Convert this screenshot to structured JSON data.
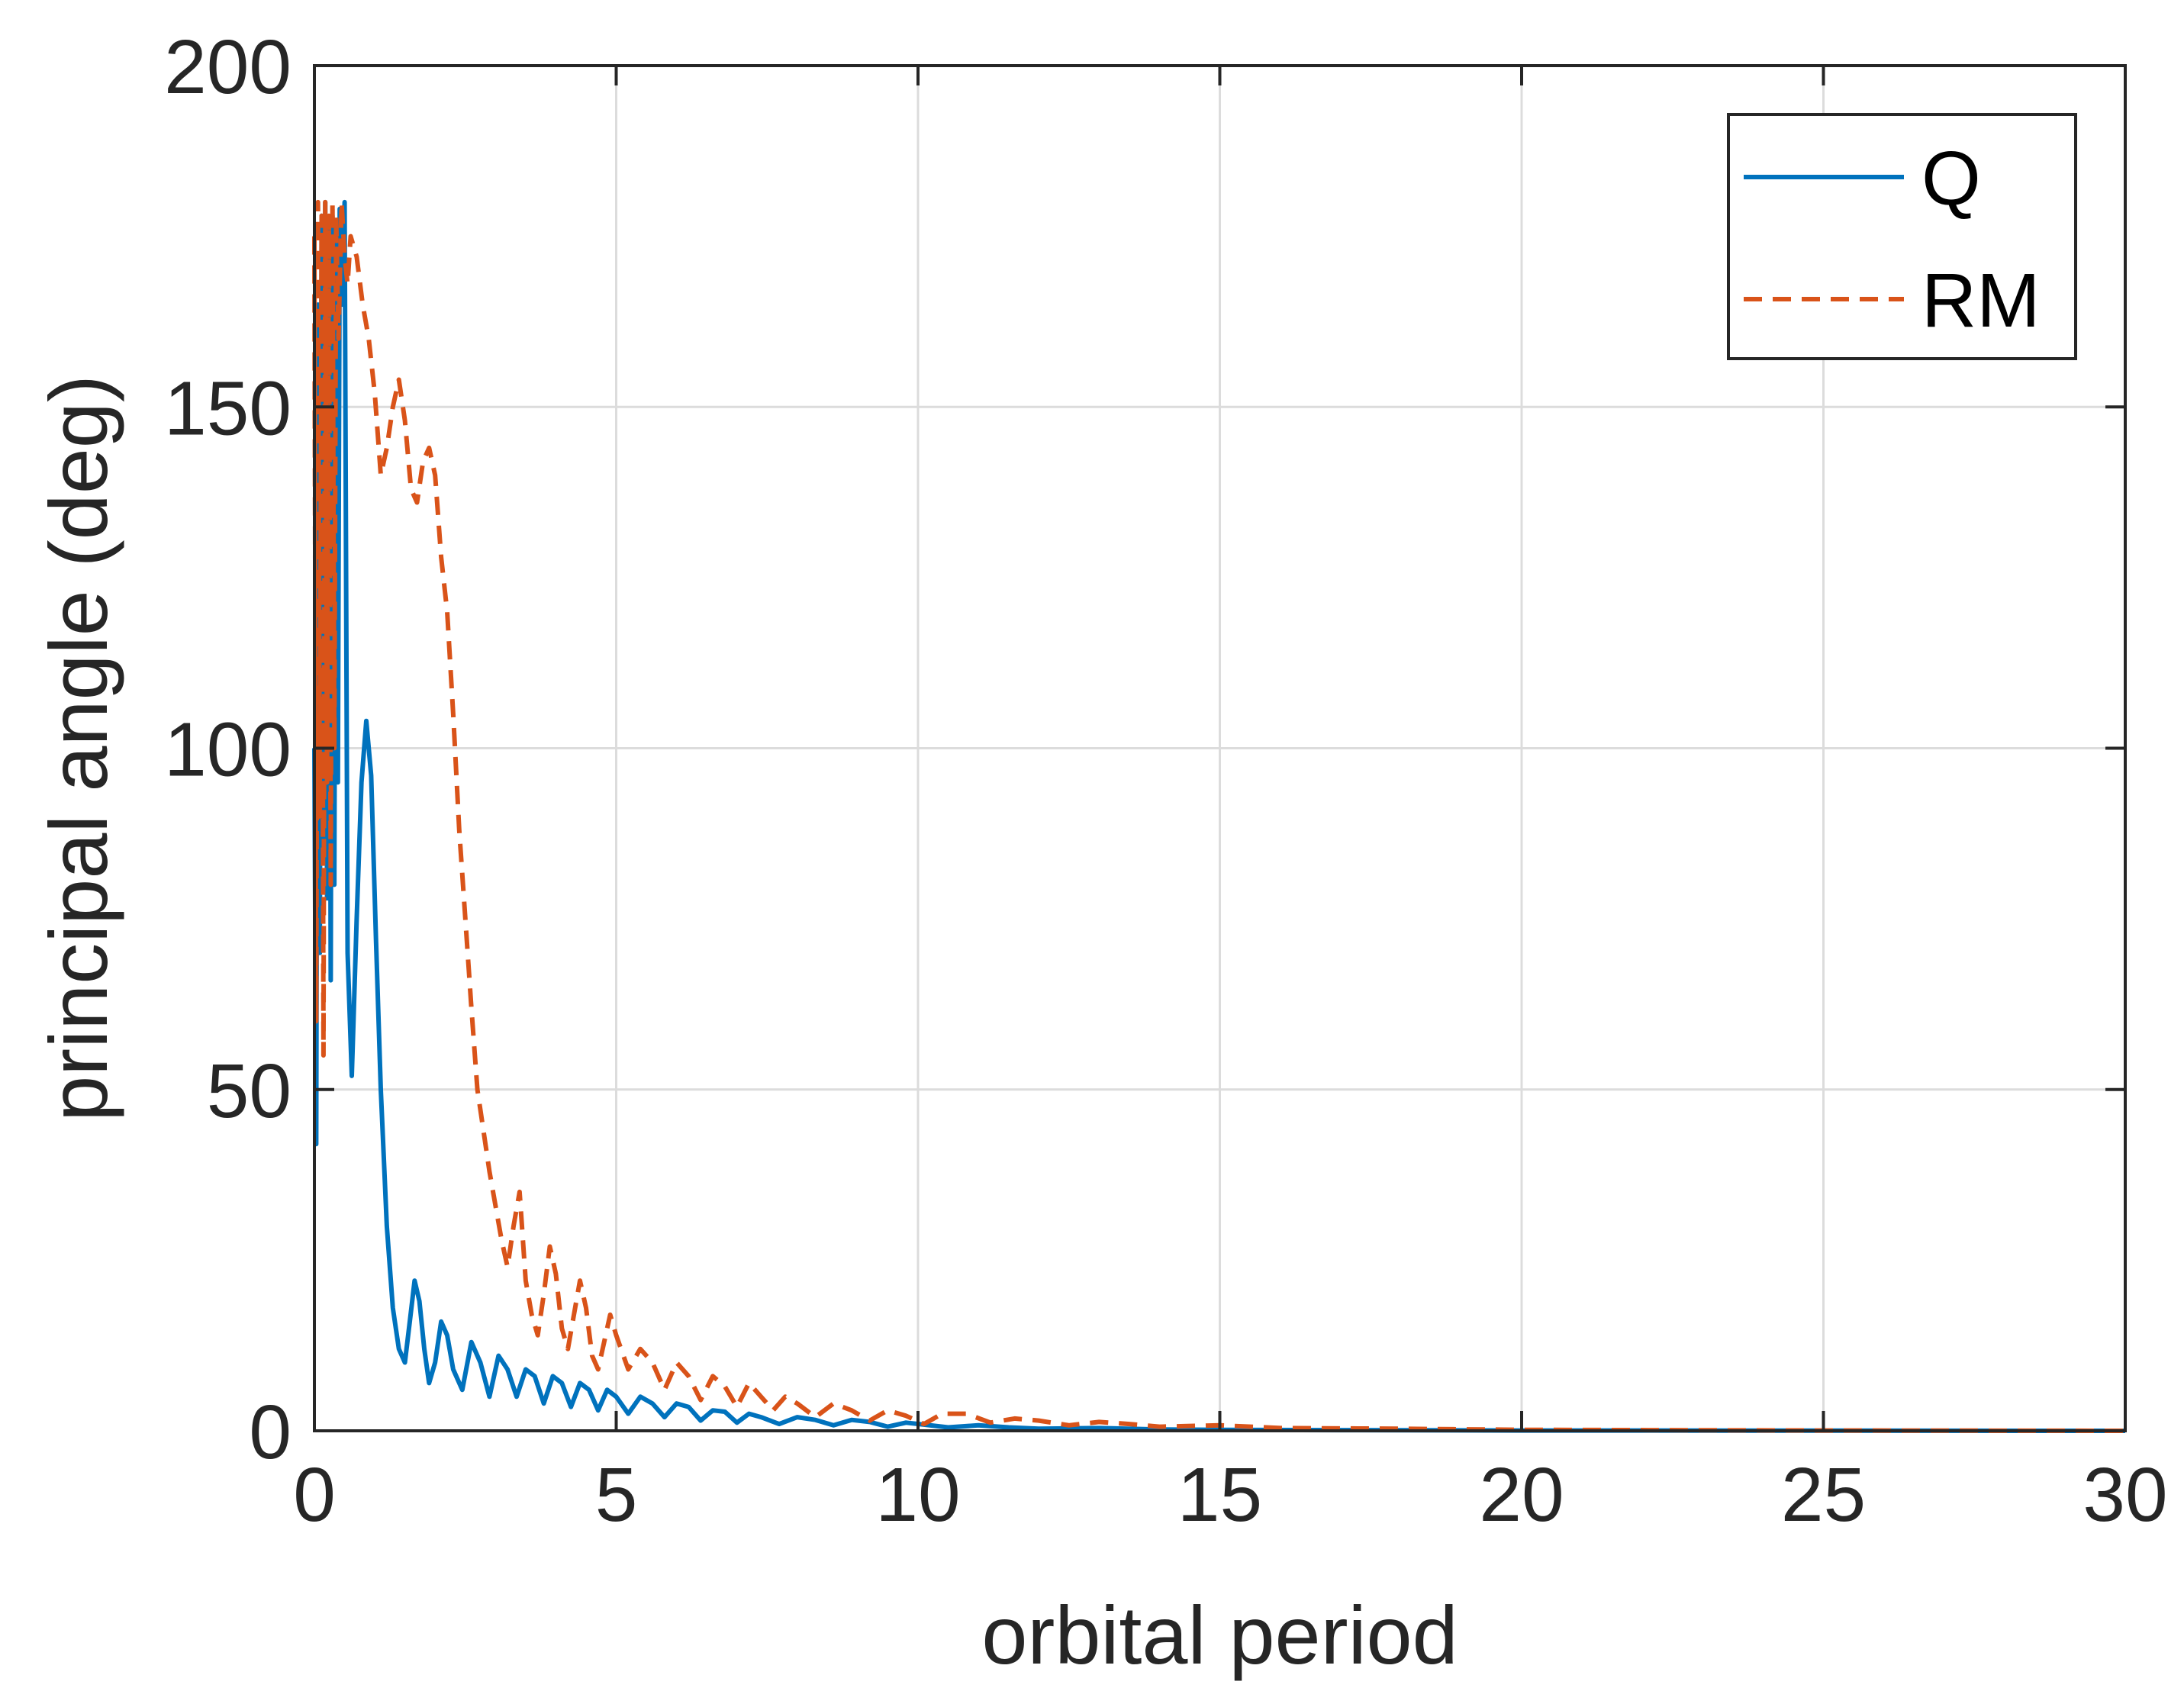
{
  "chart_data": {
    "type": "line",
    "xlabel": "orbital period",
    "ylabel": "principal angle (deg)",
    "xlim": [
      0,
      30
    ],
    "ylim": [
      0,
      200
    ],
    "xticks": [
      0,
      5,
      10,
      15,
      20,
      25,
      30
    ],
    "yticks": [
      0,
      50,
      100,
      150,
      200
    ],
    "grid": true,
    "legend_position": "top-right",
    "colors": {
      "Q": "#0072BD",
      "RM": "#D95319",
      "grid": "#dcdcdc",
      "axis": "#262626"
    },
    "series": [
      {
        "name": "Q",
        "style": "solid",
        "x": [
          0,
          0.03,
          0.06,
          0.09,
          0.12,
          0.15,
          0.18,
          0.21,
          0.24,
          0.27,
          0.3,
          0.33,
          0.36,
          0.39,
          0.42,
          0.46,
          0.5,
          0.55,
          0.62,
          0.7,
          0.78,
          0.86,
          0.94,
          1.02,
          1.1,
          1.2,
          1.3,
          1.4,
          1.5,
          1.58,
          1.66,
          1.74,
          1.82,
          1.9,
          2.0,
          2.1,
          2.2,
          2.3,
          2.45,
          2.6,
          2.75,
          2.9,
          3.05,
          3.2,
          3.35,
          3.5,
          3.65,
          3.8,
          3.95,
          4.1,
          4.25,
          4.4,
          4.55,
          4.7,
          4.85,
          5.0,
          5.2,
          5.4,
          5.6,
          5.8,
          6.0,
          6.2,
          6.4,
          6.6,
          6.8,
          7.0,
          7.2,
          7.4,
          7.7,
          8.0,
          8.3,
          8.6,
          8.9,
          9.2,
          9.5,
          9.8,
          10.1,
          10.5,
          11.0,
          11.5,
          12.0,
          13.0,
          14.0,
          15.0,
          17.0,
          20.0,
          25.0,
          30.0
        ],
        "y": [
          100,
          42,
          165,
          70,
          178,
          85,
          180,
          78,
          176,
          66,
          178,
          80,
          175,
          95,
          179,
          165,
          180,
          70,
          52,
          75,
          95,
          104,
          96,
          72,
          50,
          30,
          18,
          12,
          10,
          16,
          22,
          19,
          12,
          7,
          10,
          16,
          14,
          9,
          6,
          13,
          10,
          5,
          11,
          9,
          5,
          9,
          8,
          4,
          8,
          7,
          3.5,
          7,
          6,
          3,
          6,
          5,
          2.5,
          5,
          4,
          2,
          4,
          3.5,
          1.5,
          3,
          2.8,
          1.2,
          2.5,
          2,
          1,
          2,
          1.6,
          0.8,
          1.6,
          1.3,
          0.6,
          1.2,
          0.9,
          0.5,
          0.8,
          0.5,
          0.3,
          0.4,
          0.2,
          0.15,
          0.1,
          0.05,
          0.02,
          0
        ]
      },
      {
        "name": "RM",
        "style": "dashed",
        "x": [
          0,
          0.03,
          0.06,
          0.09,
          0.12,
          0.15,
          0.18,
          0.21,
          0.24,
          0.27,
          0.3,
          0.33,
          0.36,
          0.4,
          0.45,
          0.5,
          0.55,
          0.6,
          0.7,
          0.8,
          0.9,
          1.0,
          1.1,
          1.2,
          1.3,
          1.4,
          1.5,
          1.6,
          1.7,
          1.8,
          1.9,
          2.0,
          2.1,
          2.2,
          2.3,
          2.4,
          2.5,
          2.6,
          2.7,
          2.8,
          2.9,
          3.0,
          3.1,
          3.2,
          3.3,
          3.4,
          3.5,
          3.6,
          3.7,
          3.8,
          3.9,
          4.0,
          4.1,
          4.2,
          4.3,
          4.4,
          4.5,
          4.6,
          4.7,
          4.8,
          4.9,
          5.0,
          5.2,
          5.4,
          5.6,
          5.8,
          6.0,
          6.2,
          6.4,
          6.6,
          6.8,
          7.0,
          7.2,
          7.4,
          7.6,
          7.8,
          8.0,
          8.3,
          8.6,
          8.9,
          9.2,
          9.5,
          9.8,
          10.1,
          10.4,
          10.8,
          11.2,
          11.6,
          12.0,
          12.5,
          13.0,
          13.5,
          14.0,
          15.0,
          16.0,
          18.0,
          20.0,
          25.0,
          30.0
        ],
        "y": [
          175,
          60,
          180,
          90,
          178,
          55,
          180,
          95,
          178,
          80,
          180,
          100,
          178,
          160,
          180,
          172,
          168,
          175,
          172,
          165,
          160,
          152,
          140,
          144,
          150,
          154,
          148,
          138,
          136,
          142,
          144,
          140,
          128,
          120,
          105,
          88,
          75,
          62,
          50,
          44,
          38,
          33,
          28,
          24,
          30,
          35,
          22,
          17,
          14,
          20,
          27,
          23,
          15,
          12,
          17,
          22,
          18,
          11,
          9,
          13,
          17,
          14,
          9,
          12,
          10,
          6,
          10,
          8,
          4.5,
          8,
          6.5,
          3.5,
          7,
          5,
          3,
          5,
          4,
          2,
          4,
          3,
          1.5,
          3,
          2.2,
          1,
          2.5,
          2.5,
          1.2,
          1.8,
          1.5,
          0.8,
          1.3,
          1,
          0.6,
          0.8,
          0.4,
          0.3,
          0.15,
          0.05,
          0
        ]
      }
    ]
  }
}
